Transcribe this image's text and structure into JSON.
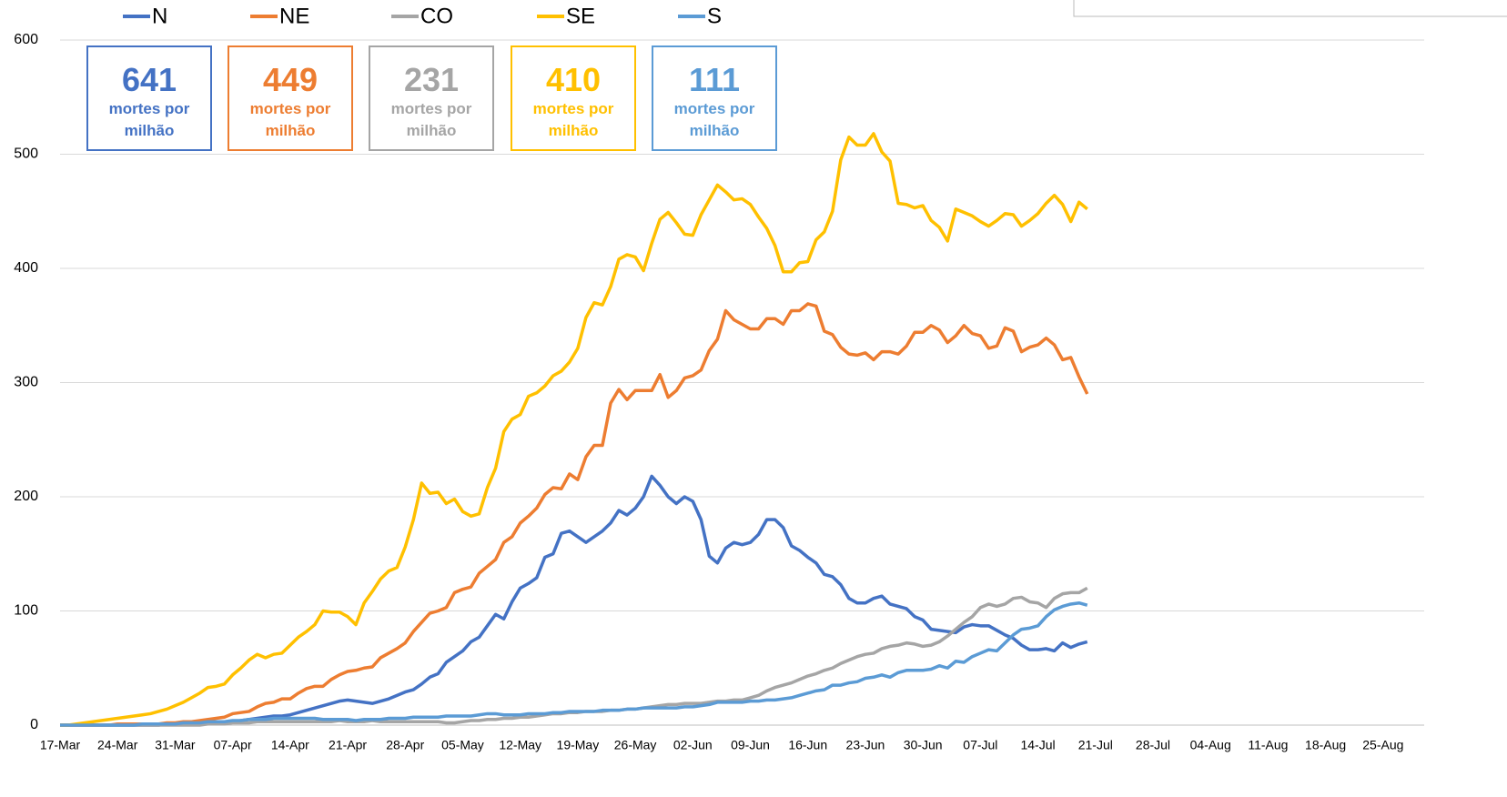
{
  "chart_data": {
    "type": "line",
    "categories": [
      "17-Mar",
      null,
      null,
      null,
      null,
      null,
      null,
      "24-Mar",
      null,
      null,
      null,
      null,
      null,
      null,
      "31-Mar",
      null,
      null,
      null,
      null,
      null,
      null,
      "07-Apr",
      null,
      null,
      null,
      null,
      null,
      null,
      "14-Apr",
      null,
      null,
      null,
      null,
      null,
      null,
      "21-Apr",
      null,
      null,
      null,
      null,
      null,
      null,
      "28-Apr",
      null,
      null,
      null,
      null,
      null,
      null,
      "05-May",
      null,
      null,
      null,
      null,
      null,
      null,
      "12-May",
      null,
      null,
      null,
      null,
      null,
      null,
      "19-May",
      null,
      null,
      null,
      null,
      null,
      null,
      "26-May",
      null,
      null,
      null,
      null,
      null,
      null,
      "02-Jun",
      null,
      null,
      null,
      null,
      null,
      null,
      "09-Jun",
      null,
      null,
      null,
      null,
      null,
      null,
      "16-Jun",
      null,
      null,
      null,
      null,
      null,
      null,
      "23-Jun",
      null,
      null,
      null,
      null,
      null,
      null,
      "30-Jun",
      null,
      null,
      null,
      null,
      null,
      null,
      "07-Jul",
      null,
      null,
      null,
      null,
      null,
      null,
      "14-Jul",
      null,
      null,
      null,
      null,
      null,
      null,
      "21-Jul",
      null,
      null,
      null,
      null,
      null,
      null,
      "28-Jul",
      null,
      null,
      null,
      null,
      null,
      null,
      "04-Aug",
      null,
      null,
      null,
      null,
      null,
      null,
      "11-Aug",
      null,
      null,
      null,
      null,
      null,
      null,
      "18-Aug",
      null,
      null,
      null,
      null,
      null,
      null,
      "25-Aug"
    ],
    "series": [
      {
        "name": "N",
        "color": "#4472c4",
        "values": [
          0,
          0,
          0,
          0,
          0,
          0,
          0,
          0,
          0,
          0,
          0,
          0,
          0,
          1,
          1,
          1,
          1,
          1,
          1,
          2,
          2,
          3,
          4,
          5,
          6,
          7,
          8,
          8,
          9,
          11,
          13,
          15,
          17,
          19,
          21,
          22,
          21,
          20,
          19,
          21,
          23,
          26,
          29,
          31,
          36,
          42,
          45,
          55,
          60,
          65,
          73,
          77,
          87,
          97,
          93,
          108,
          120,
          124,
          129,
          147,
          150,
          168,
          170,
          165,
          160,
          165,
          170,
          177,
          188,
          184,
          190,
          200,
          218,
          210,
          200,
          194,
          200,
          196,
          180,
          148,
          142,
          155,
          160,
          158,
          160,
          167,
          180,
          180,
          173,
          157,
          153,
          147,
          142,
          132,
          130,
          123,
          111,
          107,
          107,
          111,
          113,
          106,
          104,
          102,
          95,
          92,
          84,
          83,
          82,
          81,
          86,
          88,
          87,
          87,
          83,
          79,
          76,
          70,
          66,
          66,
          67,
          65,
          72,
          68,
          71,
          73,
          null,
          null,
          null,
          null,
          null,
          null,
          null,
          null,
          null,
          null,
          null,
          null,
          null,
          null,
          null,
          null,
          null,
          null,
          null,
          null,
          null,
          null,
          null,
          null,
          null,
          null,
          null,
          null,
          null,
          null,
          null,
          null,
          null,
          null,
          null,
          null
        ]
      },
      {
        "name": "NE",
        "color": "#ed7d31",
        "values": [
          0,
          0,
          0,
          0,
          0,
          0,
          0,
          1,
          1,
          1,
          1,
          1,
          1,
          2,
          2,
          3,
          3,
          4,
          5,
          6,
          7,
          10,
          11,
          12,
          16,
          19,
          20,
          23,
          23,
          28,
          32,
          34,
          34,
          40,
          44,
          47,
          48,
          50,
          51,
          59,
          63,
          67,
          72,
          82,
          90,
          98,
          100,
          103,
          116,
          119,
          121,
          133,
          139,
          145,
          160,
          165,
          177,
          183,
          190,
          202,
          208,
          207,
          220,
          215,
          235,
          245,
          245,
          282,
          294,
          285,
          293,
          293,
          293,
          307,
          287,
          293,
          304,
          306,
          311,
          328,
          338,
          363,
          355,
          351,
          347,
          347,
          356,
          356,
          351,
          363,
          363,
          369,
          367,
          345,
          342,
          331,
          325,
          324,
          326,
          320,
          327,
          327,
          325,
          332,
          344,
          344,
          350,
          346,
          335,
          341,
          350,
          343,
          341,
          330,
          332,
          348,
          345,
          327,
          331,
          333,
          339,
          333,
          320,
          322,
          305,
          290,
          null,
          null,
          null,
          null,
          null,
          null,
          null,
          null,
          null,
          null,
          null,
          null,
          null,
          null,
          null,
          null,
          null,
          null,
          null,
          null,
          null,
          null,
          null,
          null,
          null,
          null,
          null,
          null,
          null,
          null,
          null,
          null,
          null,
          null,
          null,
          null
        ]
      },
      {
        "name": "CO",
        "color": "#a5a5a5",
        "values": [
          0,
          0,
          0,
          0,
          0,
          0,
          0,
          0,
          0,
          0,
          0,
          0,
          0,
          0,
          0,
          0,
          0,
          0,
          1,
          1,
          1,
          2,
          2,
          2,
          3,
          3,
          3,
          3,
          3,
          3,
          3,
          3,
          3,
          3,
          4,
          3,
          3,
          3,
          4,
          3,
          3,
          3,
          3,
          3,
          3,
          3,
          3,
          2,
          2,
          3,
          4,
          4,
          5,
          5,
          6,
          6,
          7,
          7,
          8,
          9,
          10,
          10,
          11,
          11,
          12,
          12,
          12,
          13,
          13,
          14,
          14,
          15,
          16,
          17,
          18,
          18,
          19,
          19,
          19,
          20,
          21,
          21,
          22,
          22,
          24,
          26,
          30,
          33,
          35,
          37,
          40,
          43,
          45,
          48,
          50,
          54,
          57,
          60,
          62,
          63,
          67,
          69,
          70,
          72,
          71,
          69,
          70,
          73,
          78,
          84,
          90,
          95,
          103,
          106,
          104,
          106,
          111,
          112,
          108,
          107,
          103,
          111,
          115,
          116,
          116,
          120,
          null,
          null,
          null,
          null,
          null,
          null,
          null,
          null,
          null,
          null,
          null,
          null,
          null,
          null,
          null,
          null,
          null,
          null,
          null,
          null,
          null,
          null,
          null,
          null,
          null,
          null,
          null,
          null,
          null,
          null,
          null,
          null,
          null,
          null,
          null,
          null
        ]
      },
      {
        "name": "SE",
        "color": "#ffc000",
        "values": [
          0,
          0,
          1,
          2,
          3,
          4,
          5,
          6,
          7,
          8,
          9,
          10,
          12,
          14,
          17,
          20,
          24,
          28,
          33,
          34,
          36,
          44,
          50,
          57,
          62,
          59,
          62,
          63,
          70,
          77,
          82,
          88,
          100,
          99,
          99,
          95,
          88,
          107,
          117,
          128,
          135,
          138,
          156,
          180,
          212,
          203,
          204,
          194,
          198,
          187,
          183,
          185,
          208,
          225,
          257,
          268,
          272,
          288,
          291,
          297,
          306,
          310,
          318,
          330,
          357,
          370,
          368,
          384,
          408,
          412,
          410,
          398,
          422,
          443,
          449,
          440,
          430,
          429,
          447,
          460,
          473,
          467,
          460,
          461,
          456,
          445,
          435,
          420,
          397,
          397,
          405,
          406,
          425,
          432,
          450,
          495,
          515,
          508,
          508,
          518,
          502,
          494,
          457,
          456,
          453,
          455,
          442,
          436,
          424,
          452,
          449,
          446,
          441,
          437,
          442,
          448,
          447,
          437,
          442,
          448,
          457,
          464,
          456,
          441,
          458,
          452,
          null,
          null,
          null,
          null,
          null,
          null,
          null,
          null,
          null,
          null,
          null,
          null,
          null,
          null,
          null,
          null,
          null,
          null,
          null,
          null,
          null,
          null,
          null,
          null,
          null,
          null,
          null,
          null,
          null,
          null,
          null,
          null,
          null,
          null,
          null,
          null
        ]
      },
      {
        "name": "S",
        "color": "#5b9bd5",
        "values": [
          0,
          0,
          0,
          0,
          0,
          0,
          0,
          0,
          0,
          0,
          1,
          1,
          1,
          1,
          1,
          2,
          2,
          2,
          3,
          3,
          3,
          4,
          4,
          5,
          5,
          5,
          6,
          6,
          6,
          6,
          6,
          6,
          5,
          5,
          5,
          5,
          4,
          5,
          5,
          5,
          6,
          6,
          6,
          7,
          7,
          7,
          7,
          8,
          8,
          8,
          8,
          9,
          10,
          10,
          9,
          9,
          9,
          10,
          10,
          10,
          11,
          11,
          12,
          12,
          12,
          12,
          13,
          13,
          13,
          14,
          14,
          15,
          15,
          15,
          15,
          15,
          16,
          16,
          17,
          18,
          20,
          20,
          20,
          20,
          21,
          21,
          22,
          22,
          23,
          24,
          26,
          28,
          30,
          31,
          35,
          35,
          37,
          38,
          41,
          42,
          44,
          42,
          46,
          48,
          48,
          48,
          49,
          52,
          50,
          56,
          55,
          60,
          63,
          66,
          65,
          72,
          79,
          84,
          85,
          87,
          95,
          101,
          104,
          106,
          107,
          105,
          null,
          null,
          null,
          null,
          null,
          null,
          null,
          null,
          null,
          null,
          null,
          null,
          null,
          null,
          null,
          null,
          null,
          null,
          null,
          null,
          null,
          null,
          null,
          null,
          null,
          null,
          null,
          null,
          null,
          null,
          null,
          null,
          null,
          null,
          null,
          null
        ]
      }
    ],
    "annotations": [
      {
        "value": 641,
        "text": "mortes por milhão",
        "color": "#4472c4"
      },
      {
        "value": 449,
        "text": "mortes por milhão",
        "color": "#ed7d31"
      },
      {
        "value": 231,
        "text": "mortes por milhão",
        "color": "#a5a5a5"
      },
      {
        "value": 410,
        "text": "mortes por milhão",
        "color": "#ffc000"
      },
      {
        "value": 111,
        "text": "mortes por milhão",
        "color": "#5b9bd5"
      }
    ],
    "ylim": [
      0,
      600
    ],
    "yticks": [
      0,
      100,
      200,
      300,
      400,
      500,
      600
    ],
    "grid": true,
    "legend": "top"
  }
}
